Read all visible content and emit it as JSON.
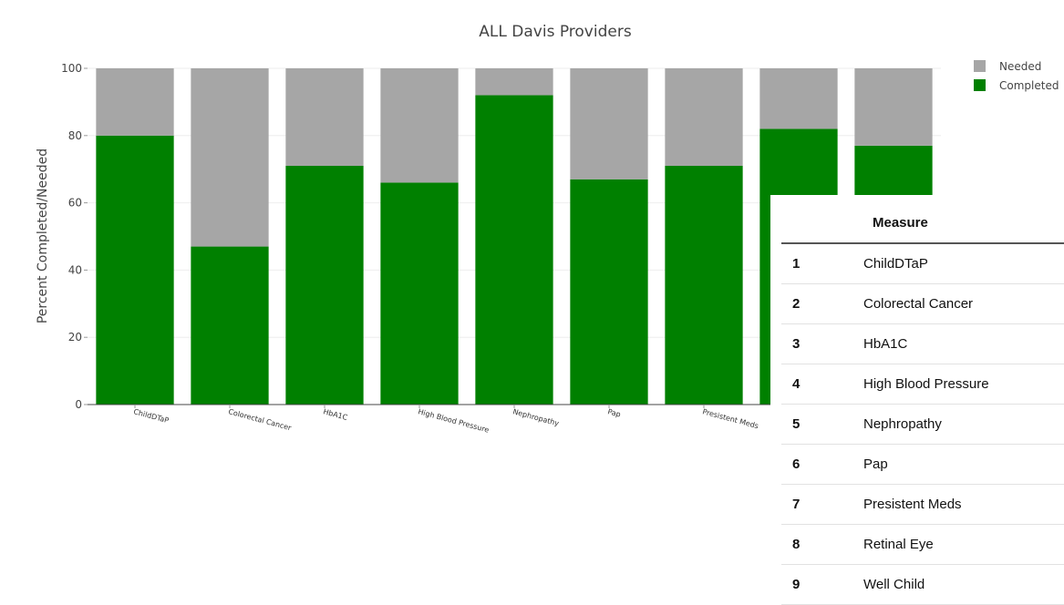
{
  "chart_data": {
    "type": "bar",
    "stacked": true,
    "title": "ALL Davis Providers",
    "ylabel": "Percent Completed/Needed",
    "xlabel": "",
    "ylim": [
      0,
      100
    ],
    "yticks": [
      0,
      20,
      40,
      60,
      80,
      100
    ],
    "grid": true,
    "legend_position": "top-right",
    "categories": [
      "ChildDTaP",
      "Colorectal Cancer",
      "HbA1C",
      "High Blood Pressure",
      "Nephropathy",
      "Pap",
      "Presistent Meds",
      "Retinal Eye",
      "Well Child"
    ],
    "series": [
      {
        "name": "Completed",
        "color": "#008000",
        "values": [
          80,
          47,
          71,
          66,
          92,
          67,
          71,
          82,
          77
        ]
      },
      {
        "name": "Needed",
        "color": "#a6a6a6",
        "values": [
          20,
          53,
          29,
          34,
          8,
          33,
          29,
          18,
          23
        ]
      }
    ],
    "legend": [
      {
        "label": "Needed",
        "color": "#a6a6a6"
      },
      {
        "label": "Completed",
        "color": "#008000"
      }
    ]
  },
  "table": {
    "header_number": "",
    "header_measure": "Measure",
    "rows": [
      {
        "num": "1",
        "measure": "ChildDTaP"
      },
      {
        "num": "2",
        "measure": "Colorectal Cancer"
      },
      {
        "num": "3",
        "measure": "HbA1C"
      },
      {
        "num": "4",
        "measure": "High Blood Pressure"
      },
      {
        "num": "5",
        "measure": "Nephropathy"
      },
      {
        "num": "6",
        "measure": "Pap"
      },
      {
        "num": "7",
        "measure": "Presistent Meds"
      },
      {
        "num": "8",
        "measure": "Retinal Eye"
      },
      {
        "num": "9",
        "measure": "Well Child"
      }
    ]
  }
}
